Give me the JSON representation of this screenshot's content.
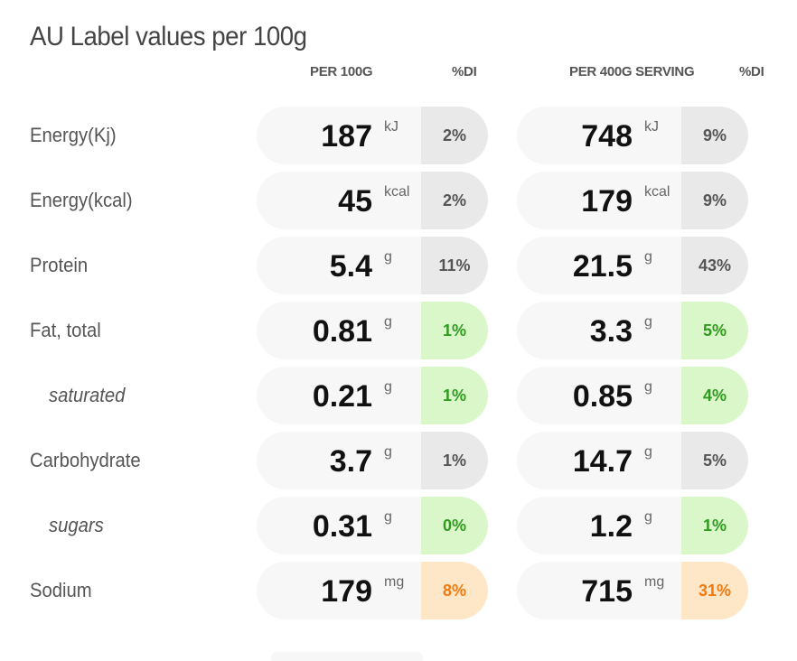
{
  "title": "AU Label values per 100g",
  "headers": {
    "per100": "PER 100G",
    "di1": "%DI",
    "perServing": "PER 400G SERVING",
    "di2": "%DI"
  },
  "rows": [
    {
      "label": "Energy(Kj)",
      "sub": false,
      "v100": "187",
      "u100": "kJ",
      "d100": "2%",
      "c100": "grey",
      "vs": "748",
      "us": "kJ",
      "ds": "9%",
      "cs": "grey"
    },
    {
      "label": "Energy(kcal)",
      "sub": false,
      "v100": "45",
      "u100": "kcal",
      "d100": "2%",
      "c100": "grey",
      "vs": "179",
      "us": "kcal",
      "ds": "9%",
      "cs": "grey"
    },
    {
      "label": "Protein",
      "sub": false,
      "v100": "5.4",
      "u100": "g",
      "d100": "11%",
      "c100": "grey",
      "vs": "21.5",
      "us": "g",
      "ds": "43%",
      "cs": "grey"
    },
    {
      "label": "Fat, total",
      "sub": false,
      "v100": "0.81",
      "u100": "g",
      "d100": "1%",
      "c100": "green",
      "vs": "3.3",
      "us": "g",
      "ds": "5%",
      "cs": "green"
    },
    {
      "label": "saturated",
      "sub": true,
      "v100": "0.21",
      "u100": "g",
      "d100": "1%",
      "c100": "green",
      "vs": "0.85",
      "us": "g",
      "ds": "4%",
      "cs": "green"
    },
    {
      "label": "Carbohydrate",
      "sub": false,
      "v100": "3.7",
      "u100": "g",
      "d100": "1%",
      "c100": "grey",
      "vs": "14.7",
      "us": "g",
      "ds": "5%",
      "cs": "grey"
    },
    {
      "label": "sugars",
      "sub": true,
      "v100": "0.31",
      "u100": "g",
      "d100": "0%",
      "c100": "green",
      "vs": "1.2",
      "us": "g",
      "ds": "1%",
      "cs": "green"
    },
    {
      "label": "Sodium",
      "sub": false,
      "v100": "179",
      "u100": "mg",
      "d100": "8%",
      "c100": "orange",
      "vs": "715",
      "us": "mg",
      "ds": "31%",
      "cs": "orange"
    }
  ]
}
